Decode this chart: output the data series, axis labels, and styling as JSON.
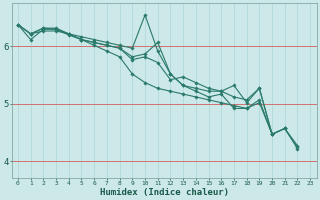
{
  "xlabel": "Humidex (Indice chaleur)",
  "bg_color": "#cce8e8",
  "line_color": "#2a7a6a",
  "white_grid_color": "#b0d8d8",
  "red_grid_color": "#d07070",
  "xlim": [
    -0.5,
    23.5
  ],
  "ylim": [
    3.7,
    6.75
  ],
  "yticks": [
    4,
    5,
    6
  ],
  "xticks": [
    0,
    1,
    2,
    3,
    4,
    5,
    6,
    7,
    8,
    9,
    10,
    11,
    12,
    13,
    14,
    15,
    16,
    17,
    18,
    19,
    20,
    21,
    22,
    23
  ],
  "lines": [
    {
      "y": [
        6.38,
        6.22,
        6.32,
        6.32,
        6.22,
        6.17,
        6.12,
        6.07,
        6.02,
        5.97,
        6.55,
        5.92,
        5.52,
        5.32,
        5.27,
        5.22,
        5.22,
        5.12,
        5.07,
        5.27,
        4.47,
        4.57,
        4.27,
        null
      ]
    },
    {
      "y": [
        6.38,
        6.22,
        6.27,
        6.27,
        6.22,
        6.12,
        6.07,
        6.02,
        5.97,
        5.82,
        5.87,
        6.07,
        5.52,
        5.32,
        5.22,
        5.12,
        5.17,
        4.92,
        4.92,
        5.07,
        4.47,
        null,
        null,
        null
      ]
    },
    {
      "y": [
        6.38,
        6.22,
        6.32,
        6.3,
        6.22,
        6.12,
        6.07,
        6.02,
        5.97,
        5.77,
        5.82,
        5.72,
        5.42,
        5.47,
        5.37,
        5.27,
        5.22,
        5.32,
        5.02,
        5.27,
        4.47,
        4.57,
        4.22,
        null
      ]
    },
    {
      "y": [
        6.38,
        6.12,
        6.3,
        6.3,
        6.2,
        6.12,
        6.02,
        5.92,
        5.82,
        5.52,
        5.37,
        5.27,
        5.22,
        5.17,
        5.12,
        5.07,
        5.02,
        4.97,
        4.92,
        5.02,
        4.47,
        4.57,
        4.24,
        null
      ]
    }
  ]
}
